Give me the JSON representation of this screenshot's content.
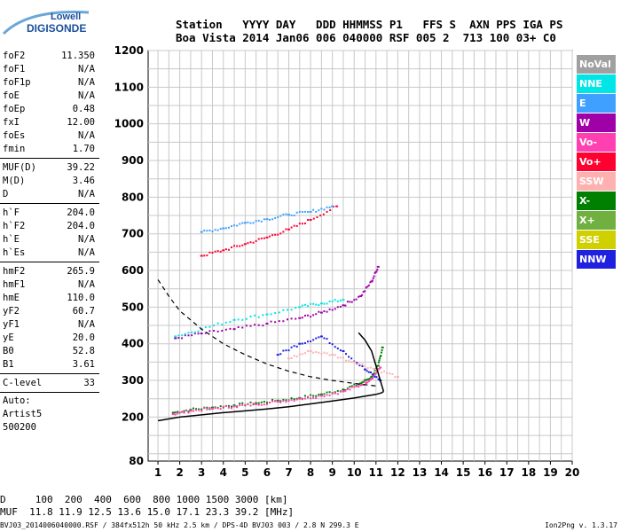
{
  "logo": {
    "line1": "Lowell",
    "line2": "DIGISONDE"
  },
  "header": {
    "label_line": "Station   YYYY DAY   DDD HHMMSS P1   FFS S  AXN PPS IGA PS",
    "value_line": "Boa Vista 2014 Jan06 006 040000 RSF 005 2  713 100 03+ C0"
  },
  "params": [
    {
      "name": "foF2",
      "value": "11.350"
    },
    {
      "name": "foF1",
      "value": "N/A"
    },
    {
      "name": "foF1p",
      "value": "N/A"
    },
    {
      "name": "foE",
      "value": "N/A"
    },
    {
      "name": "foEp",
      "value": "0.48"
    },
    {
      "name": "fxI",
      "value": "12.00"
    },
    {
      "name": "foEs",
      "value": "N/A"
    },
    {
      "name": "fmin",
      "value": "1.70"
    },
    {
      "name": "MUF(D)",
      "value": "39.22"
    },
    {
      "name": "M(D)",
      "value": "3.46"
    },
    {
      "name": "D",
      "value": "N/A"
    },
    {
      "name": "h`F",
      "value": "204.0"
    },
    {
      "name": "h`F2",
      "value": "204.0"
    },
    {
      "name": "h`E",
      "value": "N/A"
    },
    {
      "name": "h`Es",
      "value": "N/A"
    },
    {
      "name": "hmF2",
      "value": "265.9"
    },
    {
      "name": "hmF1",
      "value": "N/A"
    },
    {
      "name": "hmE",
      "value": "110.0"
    },
    {
      "name": "yF2",
      "value": "60.7"
    },
    {
      "name": "yF1",
      "value": "N/A"
    },
    {
      "name": "yE",
      "value": "20.0"
    },
    {
      "name": "B0",
      "value": "52.8"
    },
    {
      "name": "B1",
      "value": "3.61"
    },
    {
      "name": "C-level",
      "value": "33"
    }
  ],
  "auto": {
    "line1": "Auto:",
    "line2": "Artist5",
    "line3": "500200"
  },
  "legend": [
    {
      "label": "NoVal",
      "color": "#a0a0a0"
    },
    {
      "label": "NNE",
      "color": "#00e5e5"
    },
    {
      "label": "E",
      "color": "#3fa0ff"
    },
    {
      "label": "W",
      "color": "#a000a8"
    },
    {
      "label": "Vo-",
      "color": "#ff40b0"
    },
    {
      "label": "Vo+",
      "color": "#ff0030"
    },
    {
      "label": "SSW",
      "color": "#ffb0b0"
    },
    {
      "label": "X-",
      "color": "#008000"
    },
    {
      "label": "X+",
      "color": "#70b040"
    },
    {
      "label": "SSE",
      "color": "#d0d000"
    },
    {
      "label": "NNW",
      "color": "#2020e0"
    }
  ],
  "bottom": {
    "dist_line": "D     100  200  400  600  800 1000 1500 3000 [km]",
    "muf_line": "MUF  11.8 11.9 12.5 13.6 15.0 17.1 23.3 39.2 [MHz]",
    "footer_left": "BVJ03_2014006040000.RSF / 384fx512h 50 kHz 2.5 km / DPS-4D BVJ03 003 / 2.8 N 299.3 E",
    "footer_right": "Ion2Png v. 1.3.17"
  },
  "chart_data": {
    "type": "scatter",
    "x_ticks": [
      "1",
      "2",
      "3",
      "4",
      "5",
      "6",
      "7",
      "8",
      "9",
      "10",
      "11",
      "12",
      "13",
      "14",
      "15",
      "16",
      "17",
      "18",
      "19",
      "20"
    ],
    "y_ticks": [
      "80",
      "200",
      "300",
      "400",
      "500",
      "600",
      "700",
      "800",
      "900",
      "1000",
      "1100",
      "1200"
    ],
    "xlim": [
      1,
      20
    ],
    "ylim": [
      80,
      1200
    ],
    "grid": true,
    "legend_position": "right",
    "series": [
      {
        "name": "X-",
        "color": "#008000",
        "x": [
          1.7,
          2.5,
          3.5,
          4.5,
          5.5,
          6.5,
          7.5,
          8.5,
          9.5,
          10.3,
          10.8,
          11.1,
          11.3
        ],
        "y": [
          212,
          220,
          226,
          232,
          238,
          245,
          252,
          262,
          275,
          292,
          310,
          340,
          390
        ]
      },
      {
        "name": "Vo-",
        "color": "#ff40b0",
        "x": [
          1.7,
          2.5,
          3.5,
          4.5,
          5.5,
          6.5,
          7.5,
          8.5,
          9.5,
          10.3,
          10.8,
          11.2
        ],
        "y": [
          208,
          217,
          223,
          229,
          235,
          242,
          250,
          258,
          270,
          287,
          305,
          335
        ]
      },
      {
        "name": "W",
        "color": "#a000a8",
        "x": [
          1.8,
          3,
          4.5,
          6,
          7.5,
          8.5,
          9.5,
          10.3,
          10.8,
          11.1
        ],
        "y": [
          415,
          428,
          440,
          455,
          470,
          485,
          505,
          530,
          570,
          610
        ]
      },
      {
        "name": "NNE",
        "color": "#00e5e5",
        "x": [
          1.8,
          3,
          4.5,
          6,
          7.5,
          8.5,
          9.5
        ],
        "y": [
          420,
          440,
          465,
          480,
          500,
          510,
          520
        ]
      },
      {
        "name": "Vo+",
        "color": "#ff0030",
        "x": [
          3,
          4,
          5,
          6,
          7,
          8,
          9.2
        ],
        "y": [
          640,
          655,
          672,
          690,
          712,
          738,
          775
        ]
      },
      {
        "name": "E",
        "color": "#3fa0ff",
        "x": [
          3,
          4,
          5,
          6,
          7,
          8,
          9
        ],
        "y": [
          705,
          715,
          730,
          740,
          752,
          760,
          775
        ]
      },
      {
        "name": "NNW",
        "color": "#2020e0",
        "x": [
          6.5,
          7.5,
          8.5,
          9.5,
          10.5,
          11.2
        ],
        "y": [
          370,
          400,
          420,
          380,
          330,
          300
        ]
      },
      {
        "name": "SSW",
        "color": "#ffb0b0",
        "x": [
          7,
          8,
          9,
          10,
          11,
          12
        ],
        "y": [
          360,
          380,
          370,
          350,
          330,
          310
        ]
      }
    ],
    "profile_x": [
      1,
      2,
      3,
      4,
      5,
      6,
      7,
      8,
      9,
      10,
      10.6,
      11,
      11.25,
      11.35
    ],
    "profile_y": [
      190,
      200,
      206,
      212,
      217,
      222,
      228,
      236,
      244,
      252,
      258,
      262,
      266,
      270
    ],
    "profile2_x": [
      11.35,
      11.2,
      11.0,
      10.8,
      10.5,
      10.2
    ],
    "profile2_y": [
      270,
      300,
      340,
      380,
      410,
      430
    ],
    "dashed_x": [
      1,
      1.5,
      2,
      3,
      4,
      5,
      6,
      7,
      8,
      9,
      10,
      11
    ],
    "dashed_y": [
      575,
      530,
      490,
      440,
      400,
      370,
      345,
      325,
      310,
      300,
      292,
      285
    ]
  }
}
